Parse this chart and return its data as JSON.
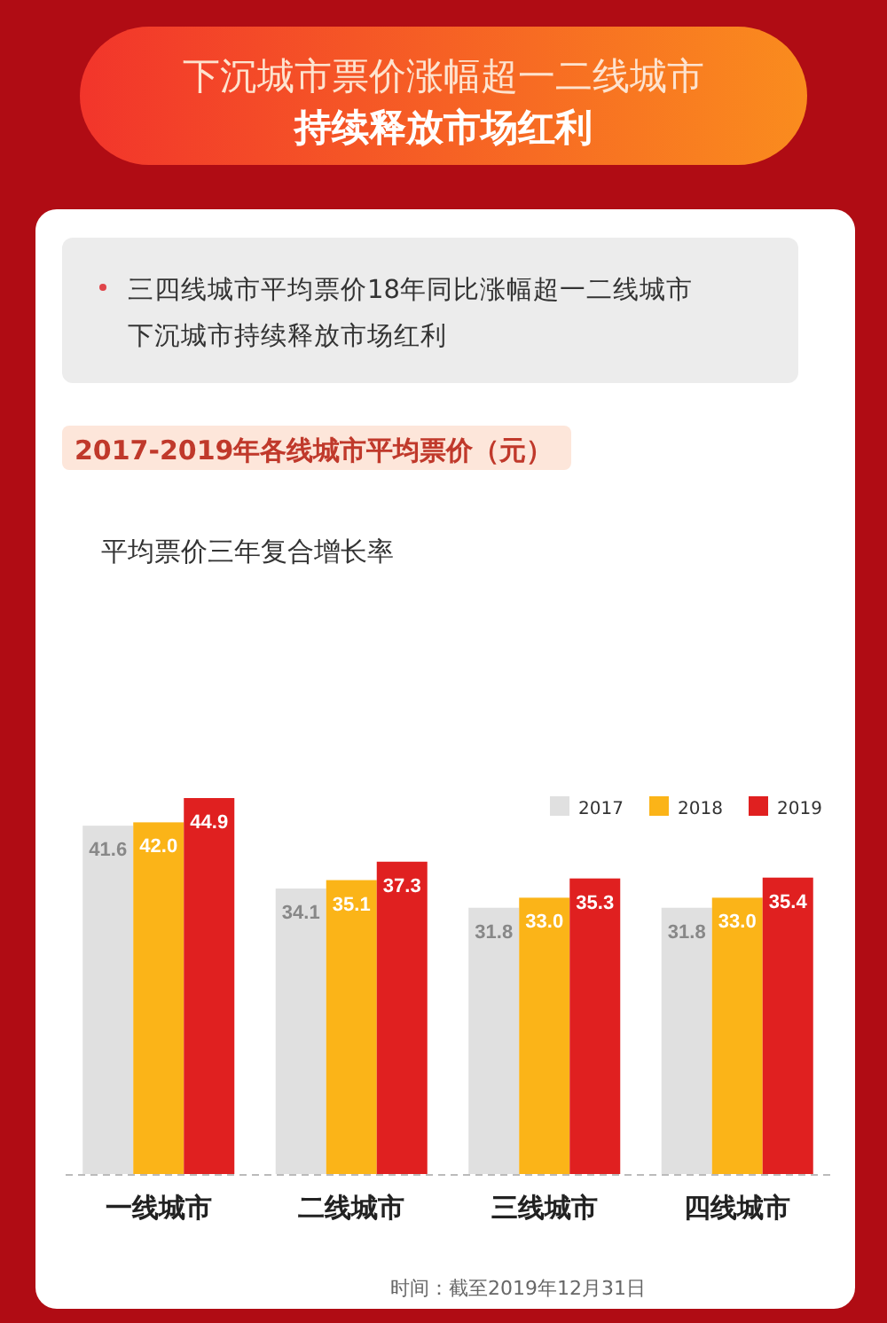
{
  "chart_data": {
    "type": "bar",
    "title": "下沉城市票价涨幅超一二线城市",
    "subtitle": "持续释放市场红利",
    "annotations": [
      "三四线城市平均票价18年同比涨幅超一二线城市",
      "下沉城市持续释放市场红利",
      "2017-2019年各线城市平均票价（元）",
      "平均票价三年复合增长率",
      "时间：截至2019年12月31日"
    ],
    "categories": [
      "一线城市",
      "二线城市",
      "三线城市",
      "四线城市"
    ],
    "series": [
      {
        "name": "2017",
        "color": "#e0e0e0",
        "values": [
          41.6,
          34.1,
          31.8,
          31.8
        ],
        "value_labels": [
          "41.6",
          "34.1",
          "31.8",
          "31.8"
        ]
      },
      {
        "name": "2018",
        "color": "#fbb418",
        "values": [
          42.0,
          35.1,
          33.0,
          33.0
        ],
        "value_labels": [
          "42.0",
          "35.1",
          "33.0",
          "33.0"
        ]
      },
      {
        "name": "2019",
        "color": "#e02020",
        "values": [
          44.9,
          37.3,
          35.3,
          35.4
        ],
        "value_labels": [
          "44.9",
          "37.3",
          "35.3",
          "35.4"
        ]
      }
    ],
    "legend": "top right",
    "grid": false
  }
}
